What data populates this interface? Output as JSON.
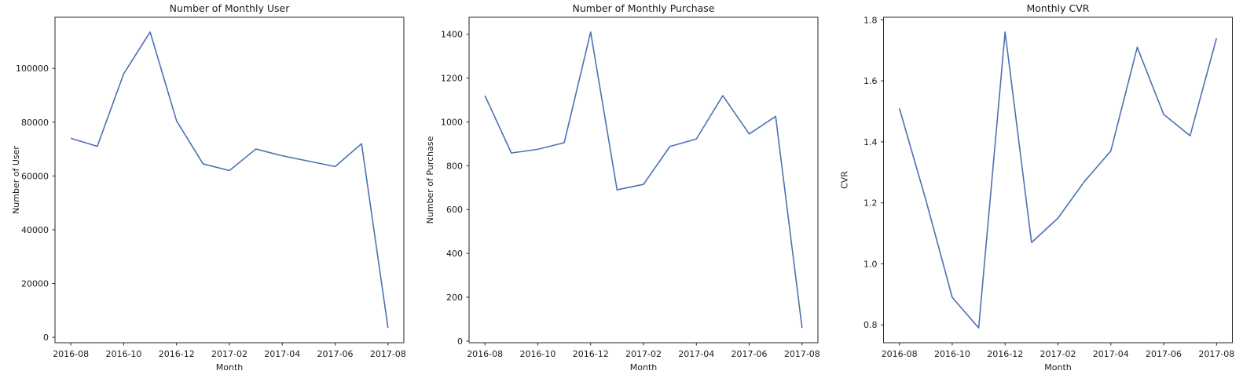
{
  "figure": {
    "background_color": "#ffffff",
    "line_color": "#4c72b0",
    "text_color": "#1a1a1a",
    "spine_color": "#262626"
  },
  "chart_data": [
    {
      "type": "line",
      "title": "Number of Monthly User",
      "xlabel": "Month",
      "ylabel": "Number of User",
      "legend": false,
      "grid": false,
      "x": [
        "2016-08",
        "2016-09",
        "2016-10",
        "2016-11",
        "2016-12",
        "2017-01",
        "2017-02",
        "2017-03",
        "2017-04",
        "2017-05",
        "2017-06",
        "2017-07",
        "2017-08"
      ],
      "values": [
        74000,
        71000,
        98000,
        113500,
        80500,
        64500,
        62000,
        70000,
        67500,
        65500,
        63500,
        72000,
        3500
      ],
      "ylim": [
        -2000,
        119000
      ],
      "yticks": [
        0,
        20000,
        40000,
        60000,
        80000,
        100000
      ],
      "ytick_labels": [
        "0",
        "20000",
        "40000",
        "60000",
        "80000",
        "100000"
      ],
      "xtick_indices": [
        0,
        2,
        4,
        6,
        8,
        10,
        12
      ],
      "xtick_labels": [
        "2016-08",
        "2016-10",
        "2016-12",
        "2017-02",
        "2017-04",
        "2017-06",
        "2017-08"
      ]
    },
    {
      "type": "line",
      "title": "Number of Monthly Purchase",
      "xlabel": "Month",
      "ylabel": "Number of Purchase",
      "legend": false,
      "grid": false,
      "x": [
        "2016-08",
        "2016-09",
        "2016-10",
        "2016-11",
        "2016-12",
        "2017-01",
        "2017-02",
        "2017-03",
        "2017-04",
        "2017-05",
        "2017-06",
        "2017-07",
        "2017-08"
      ],
      "values": [
        1120,
        858,
        875,
        905,
        1410,
        690,
        715,
        888,
        922,
        1120,
        945,
        1025,
        60
      ],
      "ylim": [
        -7.5,
        1477.5
      ],
      "yticks": [
        0,
        200,
        400,
        600,
        800,
        1000,
        1200,
        1400
      ],
      "ytick_labels": [
        "0",
        "200",
        "400",
        "600",
        "800",
        "1000",
        "1200",
        "1400"
      ],
      "xtick_indices": [
        0,
        2,
        4,
        6,
        8,
        10,
        12
      ],
      "xtick_labels": [
        "2016-08",
        "2016-10",
        "2016-12",
        "2017-02",
        "2017-04",
        "2017-06",
        "2017-08"
      ]
    },
    {
      "type": "line",
      "title": "Monthly CVR",
      "xlabel": "Month",
      "ylabel": "CVR",
      "legend": false,
      "grid": false,
      "x": [
        "2016-08",
        "2016-09",
        "2016-10",
        "2016-11",
        "2016-12",
        "2017-01",
        "2017-02",
        "2017-03",
        "2017-04",
        "2017-05",
        "2017-06",
        "2017-07",
        "2017-08"
      ],
      "values": [
        1.51,
        1.21,
        0.89,
        0.79,
        1.76,
        1.07,
        1.15,
        1.27,
        1.37,
        1.71,
        1.49,
        1.42,
        1.74
      ],
      "ylim": [
        0.7415,
        1.8085
      ],
      "yticks": [
        0.8,
        1.0,
        1.2,
        1.4,
        1.6,
        1.8
      ],
      "ytick_labels": [
        "0.8",
        "1.0",
        "1.2",
        "1.4",
        "1.6",
        "1.8"
      ],
      "xtick_indices": [
        0,
        2,
        4,
        6,
        8,
        10,
        12
      ],
      "xtick_labels": [
        "2016-08",
        "2016-10",
        "2016-12",
        "2017-02",
        "2017-04",
        "2017-06",
        "2017-08"
      ]
    }
  ]
}
